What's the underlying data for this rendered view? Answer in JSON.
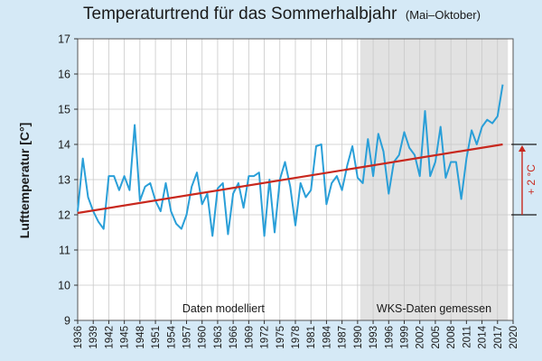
{
  "chart_data": {
    "type": "line",
    "title": "Temperaturtrend für das Sommerhalbjahr",
    "subtitle": "(Mai–Oktober)",
    "ylabel": "Lufttemperatur [C°]",
    "xlabel": "",
    "xlim": [
      1936,
      2020
    ],
    "ylim": [
      9,
      17
    ],
    "x_ticks": [
      1936,
      1939,
      1942,
      1945,
      1948,
      1951,
      1954,
      1957,
      1960,
      1963,
      1966,
      1969,
      1972,
      1975,
      1978,
      1981,
      1984,
      1987,
      1990,
      1993,
      1996,
      1999,
      2002,
      2005,
      2008,
      2011,
      2014,
      2017,
      2020
    ],
    "y_ticks": [
      9,
      10,
      11,
      12,
      13,
      14,
      15,
      16,
      17
    ],
    "grid": true,
    "series": [
      {
        "color": "#2a9fd8",
        "x": [
          1936,
          1937,
          1938,
          1939,
          1940,
          1941,
          1942,
          1943,
          1944,
          1945,
          1946,
          1947,
          1948,
          1949,
          1950,
          1951,
          1952,
          1953,
          1954,
          1955,
          1956,
          1957,
          1958,
          1959,
          1960,
          1961,
          1962,
          1963,
          1964,
          1965,
          1966,
          1967,
          1968,
          1969,
          1970,
          1971,
          1972,
          1973,
          1974,
          1975,
          1976,
          1977,
          1978,
          1979,
          1980,
          1981,
          1982,
          1983,
          1984,
          1985,
          1986,
          1987,
          1988,
          1989,
          1990,
          1991,
          1992,
          1993,
          1994,
          1995,
          1996,
          1997,
          1998,
          1999,
          2000,
          2001,
          2002,
          2003,
          2004,
          2005,
          2006,
          2007,
          2008,
          2009,
          2010,
          2011,
          2012,
          2013,
          2014,
          2015,
          2016,
          2017,
          2018
        ],
        "values": [
          12.1,
          13.6,
          12.5,
          12.1,
          11.8,
          11.6,
          13.1,
          13.1,
          12.7,
          13.1,
          12.7,
          14.55,
          12.4,
          12.8,
          12.9,
          12.4,
          12.1,
          12.9,
          12.1,
          11.75,
          11.6,
          12.0,
          12.8,
          13.2,
          12.3,
          12.6,
          11.4,
          12.75,
          12.9,
          11.45,
          12.6,
          12.9,
          12.2,
          13.1,
          13.1,
          13.2,
          11.4,
          13.0,
          11.5,
          13.0,
          13.5,
          12.8,
          11.7,
          12.9,
          12.5,
          12.7,
          13.95,
          14.0,
          12.3,
          12.9,
          13.1,
          12.7,
          13.4,
          13.95,
          13.05,
          12.9,
          14.15,
          13.1,
          14.3,
          13.8,
          12.6,
          13.5,
          13.7,
          14.35,
          13.9,
          13.7,
          13.1,
          14.95,
          13.1,
          13.5,
          14.5,
          13.05,
          13.5,
          13.5,
          12.45,
          13.6,
          14.4,
          14.0,
          14.5,
          14.7,
          14.6,
          14.8,
          15.7
        ]
      },
      {
        "color": "#c8281e",
        "x": [
          1936,
          2018
        ],
        "values": [
          12.05,
          14.0
        ]
      }
    ],
    "annotations": {
      "modelled_label": "Daten modelliert",
      "measured_label": "WKS-Daten gemessen",
      "measured_start": 1990.5,
      "measured_end": 2019,
      "delta_label": "+ 2 °C",
      "delta_from": 12.0,
      "delta_to": 14.0,
      "shade_color": "#e2e2e2",
      "trend_color": "#c8281e"
    }
  }
}
